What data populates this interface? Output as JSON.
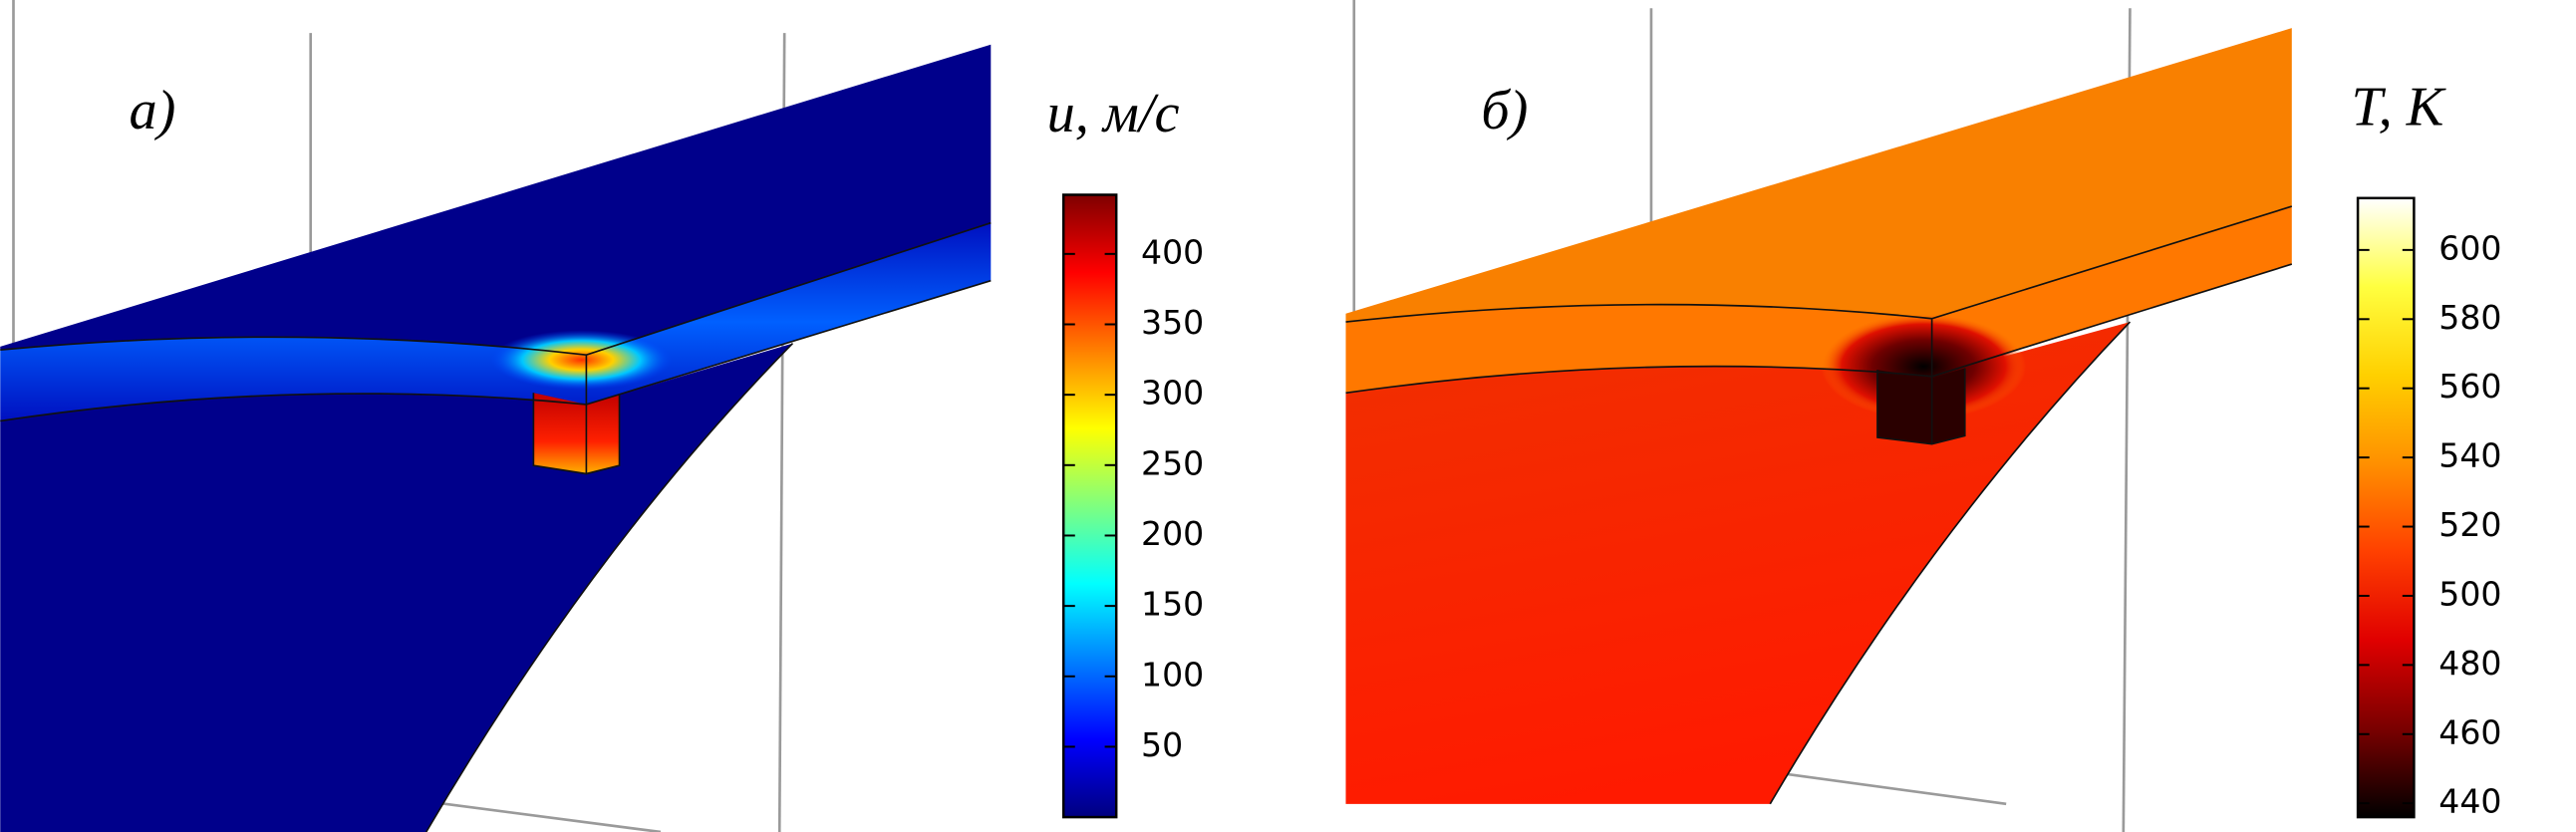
{
  "chart_data": [
    {
      "type": "colorbar",
      "label": "а)",
      "title": "u, м/с",
      "colormap": [
        "#00007f",
        "#0000ff",
        "#007fff",
        "#00ffff",
        "#7fff7f",
        "#ffff00",
        "#ff7f00",
        "#ff0000",
        "#7f0000"
      ],
      "ylim": [
        0,
        442
      ],
      "yticks": [
        50,
        100,
        150,
        200,
        250,
        300,
        350,
        400
      ]
    },
    {
      "type": "colorbar",
      "label": "б)",
      "title": "T, K",
      "colormap": [
        "#000000",
        "#7a0000",
        "#e00000",
        "#ff4000",
        "#ff9000",
        "#ffd000",
        "#ffff40",
        "#ffffff"
      ],
      "ylim": [
        436,
        615
      ],
      "yticks": [
        440,
        460,
        480,
        500,
        520,
        540,
        560,
        580,
        600
      ]
    }
  ]
}
